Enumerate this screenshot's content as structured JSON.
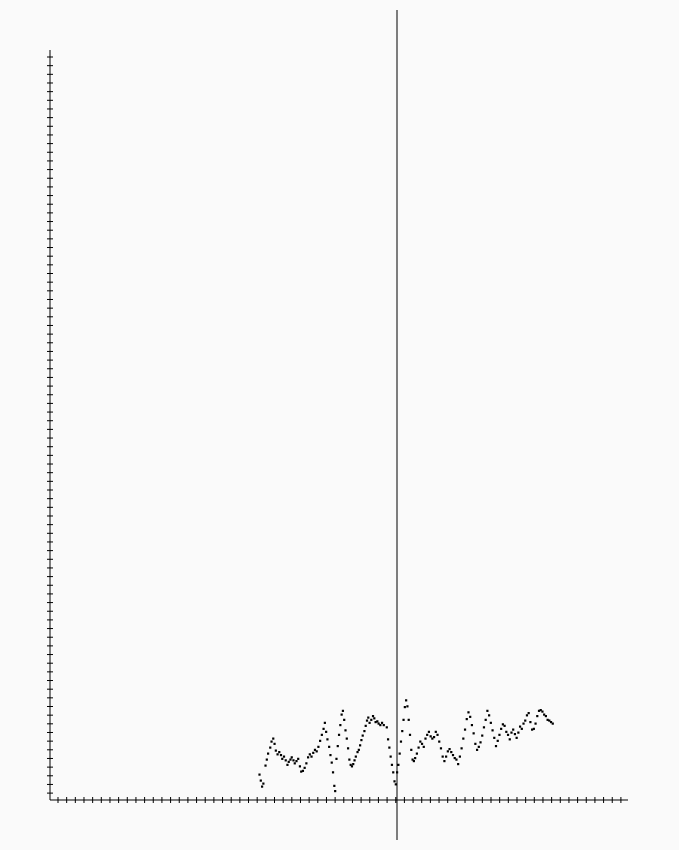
{
  "chart_data": {
    "type": "scatter",
    "title": "",
    "xlabel": "",
    "ylabel": "",
    "grid": false,
    "legend": "none",
    "xlim": [
      -100,
      65
    ],
    "ylim": [
      -100,
      110
    ],
    "marker_color": "#000000",
    "axis_color": "#000000",
    "background": "#fafafa",
    "series": [
      {
        "values": [
          [
            -32.0,
            6.8
          ],
          [
            -31.7,
            5.2
          ],
          [
            -31.4,
            3.6
          ],
          [
            -31.1,
            4.4
          ],
          [
            -30.6,
            9.2
          ],
          [
            -30.3,
            10.8
          ],
          [
            -30.0,
            12.4
          ],
          [
            -29.5,
            14.0
          ],
          [
            -29.2,
            15.6
          ],
          [
            -28.8,
            16.4
          ],
          [
            -28.5,
            15.0
          ],
          [
            -28.2,
            13.2
          ],
          [
            -27.8,
            12.2
          ],
          [
            -27.4,
            12.8
          ],
          [
            -27.0,
            12.0
          ],
          [
            -26.7,
            11.0
          ],
          [
            -26.3,
            11.6
          ],
          [
            -25.9,
            10.6
          ],
          [
            -25.5,
            9.4
          ],
          [
            -25.2,
            10.2
          ],
          [
            -24.8,
            10.8
          ],
          [
            -24.5,
            11.4
          ],
          [
            -24.1,
            10.6
          ],
          [
            -23.8,
            9.8
          ],
          [
            -23.4,
            10.4
          ],
          [
            -23.0,
            11.0
          ],
          [
            -22.6,
            9.0
          ],
          [
            -22.3,
            7.6
          ],
          [
            -21.9,
            7.8
          ],
          [
            -21.5,
            8.6
          ],
          [
            -21.1,
            9.8
          ],
          [
            -20.7,
            11.4
          ],
          [
            -20.3,
            12.2
          ],
          [
            -19.9,
            11.6
          ],
          [
            -19.5,
            12.6
          ],
          [
            -19.1,
            13.4
          ],
          [
            -18.7,
            13.0
          ],
          [
            -18.3,
            14.2
          ],
          [
            -17.9,
            15.8
          ],
          [
            -17.5,
            17.4
          ],
          [
            -17.1,
            19.0
          ],
          [
            -16.8,
            20.6
          ],
          [
            -16.5,
            18.2
          ],
          [
            -16.2,
            16.2
          ],
          [
            -15.8,
            14.2
          ],
          [
            -15.5,
            12.0
          ],
          [
            -15.2,
            10.0
          ],
          [
            -14.9,
            7.4
          ],
          [
            -14.6,
            3.8
          ],
          [
            -14.4,
            2.4
          ],
          [
            -14.1,
            11.0
          ],
          [
            -13.8,
            14.4
          ],
          [
            -13.5,
            17.4
          ],
          [
            -13.2,
            20.0
          ],
          [
            -12.9,
            22.8
          ],
          [
            -12.6,
            23.8
          ],
          [
            -12.3,
            21.4
          ],
          [
            -12.0,
            18.6
          ],
          [
            -11.7,
            16.4
          ],
          [
            -11.4,
            13.8
          ],
          [
            -11.1,
            10.8
          ],
          [
            -10.8,
            9.4
          ],
          [
            -10.5,
            9.0
          ],
          [
            -10.2,
            9.6
          ],
          [
            -9.9,
            10.6
          ],
          [
            -9.6,
            11.6
          ],
          [
            -9.2,
            12.8
          ],
          [
            -8.9,
            13.4
          ],
          [
            -8.6,
            14.6
          ],
          [
            -8.3,
            16.0
          ],
          [
            -8.0,
            17.2
          ],
          [
            -7.6,
            18.4
          ],
          [
            -7.3,
            19.8
          ],
          [
            -7.0,
            21.2
          ],
          [
            -6.7,
            22.0
          ],
          [
            -6.4,
            20.6
          ],
          [
            -6.0,
            21.4
          ],
          [
            -5.6,
            22.4
          ],
          [
            -5.3,
            21.8
          ],
          [
            -5.0,
            20.8
          ],
          [
            -4.6,
            21.0
          ],
          [
            -4.3,
            20.4
          ],
          [
            -3.9,
            20.0
          ],
          [
            -3.5,
            20.6
          ],
          [
            -3.1,
            20.0
          ],
          [
            -2.4,
            19.4
          ],
          [
            -2.1,
            16.2
          ],
          [
            -1.8,
            14.0
          ],
          [
            -1.5,
            11.6
          ],
          [
            -1.2,
            9.4
          ],
          [
            -0.9,
            7.4
          ],
          [
            -0.6,
            5.0
          ],
          [
            -0.3,
            4.2
          ],
          [
            0.0,
            7.4
          ],
          [
            0.3,
            9.4
          ],
          [
            0.6,
            12.4
          ],
          [
            0.9,
            15.6
          ],
          [
            1.2,
            18.4
          ],
          [
            1.5,
            21.4
          ],
          [
            1.8,
            24.8
          ],
          [
            2.1,
            26.6
          ],
          [
            2.4,
            25.0
          ],
          [
            2.7,
            21.4
          ],
          [
            3.0,
            17.4
          ],
          [
            3.3,
            13.4
          ],
          [
            3.6,
            10.8
          ],
          [
            3.9,
            10.4
          ],
          [
            4.2,
            11.2
          ],
          [
            4.6,
            12.4
          ],
          [
            5.0,
            14.0
          ],
          [
            5.4,
            15.6
          ],
          [
            5.8,
            15.0
          ],
          [
            6.2,
            14.2
          ],
          [
            6.6,
            16.4
          ],
          [
            7.0,
            17.4
          ],
          [
            7.4,
            18.2
          ],
          [
            7.8,
            17.0
          ],
          [
            8.2,
            16.4
          ],
          [
            8.6,
            16.8
          ],
          [
            9.0,
            18.2
          ],
          [
            9.4,
            17.4
          ],
          [
            9.8,
            15.6
          ],
          [
            10.2,
            13.8
          ],
          [
            10.6,
            11.6
          ],
          [
            11.0,
            10.4
          ],
          [
            11.4,
            11.6
          ],
          [
            11.8,
            13.0
          ],
          [
            12.2,
            13.6
          ],
          [
            12.6,
            12.8
          ],
          [
            13.0,
            12.0
          ],
          [
            13.4,
            11.2
          ],
          [
            13.8,
            10.8
          ],
          [
            14.2,
            9.6
          ],
          [
            14.6,
            11.6
          ],
          [
            15.0,
            13.8
          ],
          [
            15.4,
            16.4
          ],
          [
            15.8,
            18.8
          ],
          [
            16.2,
            21.6
          ],
          [
            16.6,
            23.4
          ],
          [
            17.0,
            22.2
          ],
          [
            17.4,
            20.0
          ],
          [
            17.8,
            17.8
          ],
          [
            18.2,
            15.0
          ],
          [
            18.6,
            13.4
          ],
          [
            19.0,
            14.2
          ],
          [
            19.4,
            15.4
          ],
          [
            19.8,
            17.2
          ],
          [
            20.2,
            19.4
          ],
          [
            20.6,
            21.4
          ],
          [
            21.0,
            23.8
          ],
          [
            21.4,
            22.6
          ],
          [
            21.8,
            20.6
          ],
          [
            22.2,
            18.6
          ],
          [
            22.6,
            16.6
          ],
          [
            23.0,
            14.4
          ],
          [
            23.4,
            15.8
          ],
          [
            23.8,
            17.4
          ],
          [
            24.2,
            19.0
          ],
          [
            24.6,
            20.2
          ],
          [
            25.0,
            19.8
          ],
          [
            25.4,
            18.2
          ],
          [
            25.8,
            17.4
          ],
          [
            26.2,
            16.2
          ],
          [
            26.6,
            18.0
          ],
          [
            27.0,
            18.8
          ],
          [
            27.4,
            17.6
          ],
          [
            27.8,
            16.6
          ],
          [
            28.2,
            18.0
          ],
          [
            28.6,
            19.6
          ],
          [
            29.0,
            19.0
          ],
          [
            29.4,
            20.4
          ],
          [
            29.8,
            21.2
          ],
          [
            30.2,
            22.6
          ],
          [
            30.6,
            23.2
          ],
          [
            31.0,
            20.8
          ],
          [
            31.4,
            18.8
          ],
          [
            31.8,
            19.0
          ],
          [
            32.2,
            20.4
          ],
          [
            32.6,
            22.4
          ],
          [
            33.0,
            23.8
          ],
          [
            33.4,
            24.0
          ],
          [
            33.8,
            23.6
          ],
          [
            34.2,
            22.8
          ],
          [
            34.6,
            22.4
          ],
          [
            35.0,
            21.4
          ],
          [
            35.4,
            21.2
          ],
          [
            35.8,
            20.8
          ],
          [
            36.2,
            20.4
          ]
        ]
      }
    ]
  }
}
